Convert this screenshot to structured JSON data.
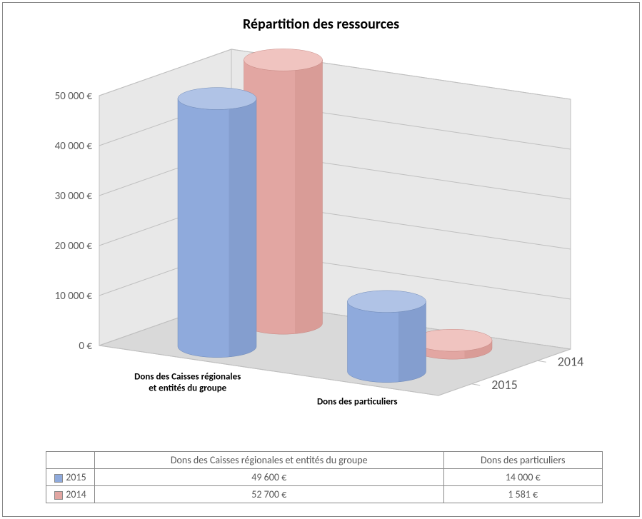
{
  "chart": {
    "type": "3d-cylinder-bar",
    "title": "Répartition des  ressources",
    "title_fontsize": 20,
    "title_fontweight": "bold",
    "title_color": "#000000",
    "background_color": "#ffffff",
    "border_color": "#888888",
    "categories": [
      "Dons des Caisses régionales et entités du groupe",
      "Dons des particuliers"
    ],
    "category_labels": [
      [
        "Dons des Caisses régionales",
        "et entités du groupe"
      ],
      [
        "Dons des particuliers"
      ]
    ],
    "category_label_fontsize": 13,
    "category_label_fontweight": "bold",
    "series": [
      {
        "name": "2015",
        "color": "#8faadc",
        "color_dark": "#6f8ab8",
        "color_light": "#b0c3e6",
        "values": [
          49600,
          14000
        ]
      },
      {
        "name": "2014",
        "color": "#e2a6a2",
        "color_dark": "#c88984",
        "color_light": "#f0c4c0",
        "values": [
          52700,
          1581
        ]
      }
    ],
    "depth_labels": [
      "2015",
      "2014"
    ],
    "depth_label_fontsize": 18,
    "y_axis": {
      "min": 0,
      "max": 50000,
      "tick_step": 10000,
      "ticks": [
        "0 €",
        "10 000 €",
        "20 000 €",
        "30 000 €",
        "40 000 €",
        "50 000 €"
      ],
      "label_fontsize": 15,
      "label_color": "#595959"
    },
    "floor_color": "#d9d9d9",
    "wall_color": "#e8e8e8",
    "grid_color": "#bfbfbf",
    "cylinder_rx_ratio": 1.0,
    "cylinder_ry_ratio": 0.28
  },
  "table": {
    "columns": [
      "Dons des Caisses régionales et entités du groupe",
      "Dons des particuliers"
    ],
    "rows": [
      {
        "label": "2015",
        "swatch": "#8faadc",
        "cells": [
          "49 600 €",
          "14 000 €"
        ]
      },
      {
        "label": "2014",
        "swatch": "#e2a6a2",
        "cells": [
          "52 700 €",
          "1 581 €"
        ]
      }
    ],
    "border_color": "#888888",
    "text_color": "#595959",
    "fontsize": 14
  }
}
